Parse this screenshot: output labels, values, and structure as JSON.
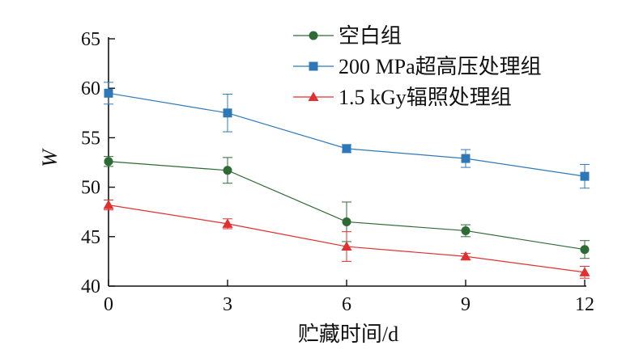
{
  "chart_data": {
    "type": "line",
    "title": "",
    "xlabel": "贮藏时间/d",
    "ylabel": "W",
    "x": [
      0,
      3,
      6,
      9,
      12
    ],
    "xticks": [
      "0",
      "3",
      "6",
      "9",
      "12"
    ],
    "yticks": [
      "40",
      "45",
      "50",
      "55",
      "60",
      "65"
    ],
    "xlim": [
      0,
      12
    ],
    "ylim": [
      40,
      65
    ],
    "grid": false,
    "legend_position": "top-right",
    "series": [
      {
        "name": "空白组",
        "marker": "circle",
        "color": "#2e6b34",
        "values": [
          52.6,
          51.7,
          46.5,
          45.6,
          43.7
        ],
        "errors": [
          0.5,
          1.3,
          2.0,
          0.6,
          0.9
        ]
      },
      {
        "name": "200 MPa超高压处理组",
        "marker": "square",
        "color": "#2f78b8",
        "values": [
          59.5,
          57.5,
          53.9,
          52.9,
          51.1
        ],
        "errors": [
          1.1,
          1.9,
          0.4,
          0.9,
          1.2
        ]
      },
      {
        "name": "1.5 kGy辐照处理组",
        "marker": "triangle",
        "color": "#e03030",
        "values": [
          48.2,
          46.3,
          44.0,
          43.0,
          41.4
        ],
        "errors": [
          0.5,
          0.5,
          1.5,
          0.3,
          0.6
        ]
      }
    ]
  }
}
